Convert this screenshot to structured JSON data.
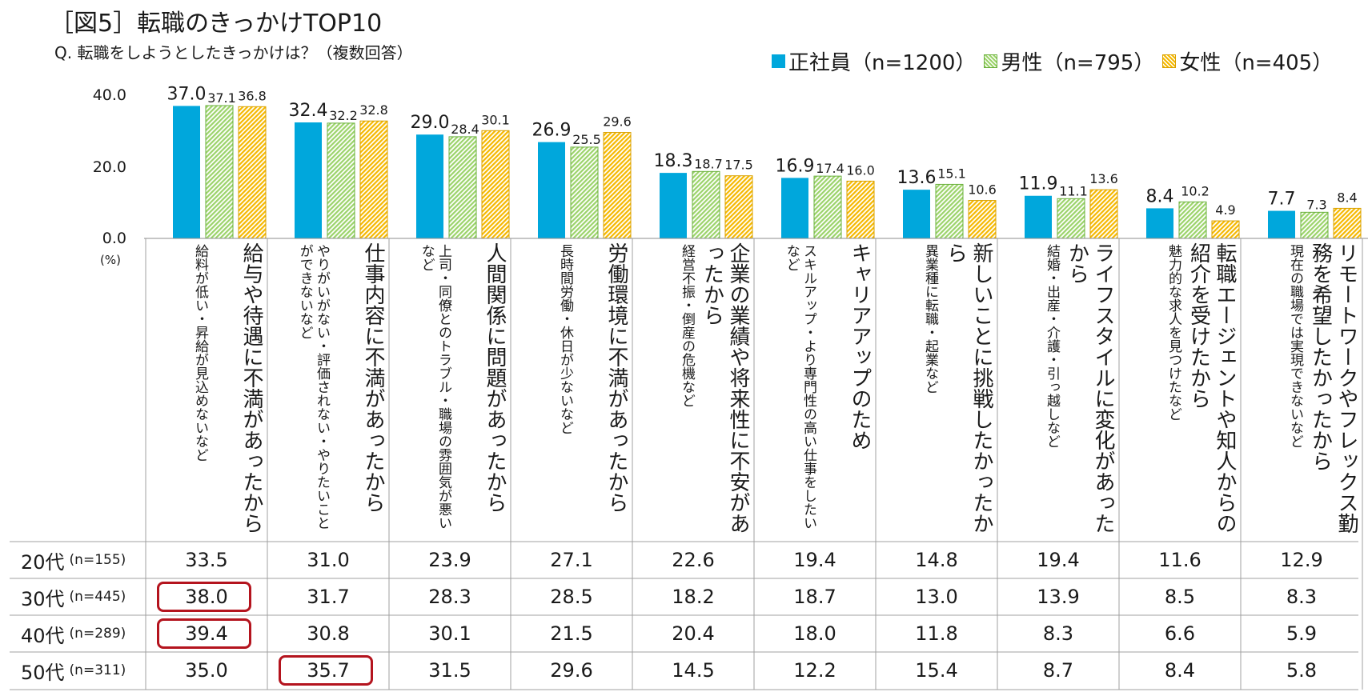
{
  "title": "［図5］転職のきっかけTOP10",
  "question": "Q. 転職をしようとしたきっかけは？（複数回答）",
  "legend": [
    {
      "label": "正社員（n=1200）",
      "color": "#00a7dc",
      "style": "solid"
    },
    {
      "label": "男性（n=795）",
      "color": "#9bd36a",
      "style": "hatch"
    },
    {
      "label": "女性（n=405）",
      "color": "#f5b800",
      "style": "hatch"
    }
  ],
  "axis": {
    "ticks": [
      "40.0",
      "20.0",
      "0.0"
    ],
    "unit": "(%)"
  },
  "chart_data": {
    "type": "bar",
    "title": "［図5］転職のきっかけTOP10",
    "ylabel": "(%)",
    "ylim": [
      0,
      40
    ],
    "grid": false,
    "legend_position": "top-right",
    "categories": [
      "給与や待遇に不満があったから",
      "仕事内容に不満があったから",
      "人間関係に問題があったから",
      "労働環境に不満があったから",
      "企業の業績や将来性に不安があったから",
      "キャリアアップのため",
      "新しいことに挑戦したかったから",
      "ライフスタイルに変化があったから",
      "転職エージェントや知人からの紹介を受けたから",
      "リモートワークやフレックス勤務を希望したかったから"
    ],
    "subcategories": [
      "給料が低い・昇給が見込めないなど",
      "やりがいがない・評価されない・やりたいことができないなど",
      "上司・同僚とのトラブル・職場の雰囲気が悪いなど",
      "長時間労働・休日が少ないなど",
      "経営不振・倒産の危機など",
      "スキルアップ・より専門性の高い仕事をしたいなど",
      "異業種に転職・起業など",
      "結婚・出産・介護・引っ越しなど",
      "魅力的な求人を見つけたなど",
      "現在の職場では実現できないなど"
    ],
    "series": [
      {
        "name": "正社員（n=1200）",
        "values": [
          37.0,
          32.4,
          29.0,
          26.9,
          18.3,
          16.9,
          13.6,
          11.9,
          8.4,
          7.7
        ],
        "labels": [
          "37.0",
          "32.4",
          "29.0",
          "26.9",
          "18.3",
          "16.9",
          "13.6",
          "11.9",
          "8.4",
          "7.7"
        ]
      },
      {
        "name": "男性（n=795）",
        "values": [
          37.1,
          32.2,
          28.4,
          25.5,
          18.7,
          17.4,
          15.1,
          11.1,
          10.2,
          7.3
        ],
        "labels": [
          "37.1",
          "32.2",
          "28.4",
          "25.5",
          "18.7",
          "17.4",
          "15.1",
          "11.1",
          "10.2",
          "7.3"
        ]
      },
      {
        "name": "女性（n=405）",
        "values": [
          36.8,
          32.8,
          30.1,
          29.6,
          17.5,
          16.0,
          10.6,
          13.6,
          4.9,
          8.4
        ],
        "labels": [
          "36.8",
          "32.8",
          "30.1",
          "29.6",
          "17.5",
          "16.0",
          "10.6",
          "13.6",
          "4.9",
          "8.4"
        ]
      }
    ]
  },
  "age_table": {
    "rows": [
      {
        "age": "20代",
        "n": "(n=155)",
        "values": [
          "33.5",
          "31.0",
          "23.9",
          "27.1",
          "22.6",
          "19.4",
          "14.8",
          "19.4",
          "11.6",
          "12.9"
        ]
      },
      {
        "age": "30代",
        "n": "(n=445)",
        "values": [
          "38.0",
          "31.7",
          "28.3",
          "28.5",
          "18.2",
          "18.7",
          "13.0",
          "13.9",
          "8.5",
          "8.3"
        ]
      },
      {
        "age": "40代",
        "n": "(n=289)",
        "values": [
          "39.4",
          "30.8",
          "30.1",
          "21.5",
          "20.4",
          "18.0",
          "11.8",
          "8.3",
          "6.6",
          "5.9"
        ]
      },
      {
        "age": "50代",
        "n": "(n=311)",
        "values": [
          "35.0",
          "35.7",
          "31.5",
          "29.6",
          "14.5",
          "12.2",
          "15.4",
          "8.7",
          "8.4",
          "5.8"
        ]
      }
    ],
    "highlight_color": "#b4141e",
    "highlights": [
      {
        "row": 1,
        "col": 0
      },
      {
        "row": 2,
        "col": 0
      },
      {
        "row": 3,
        "col": 1
      }
    ]
  }
}
